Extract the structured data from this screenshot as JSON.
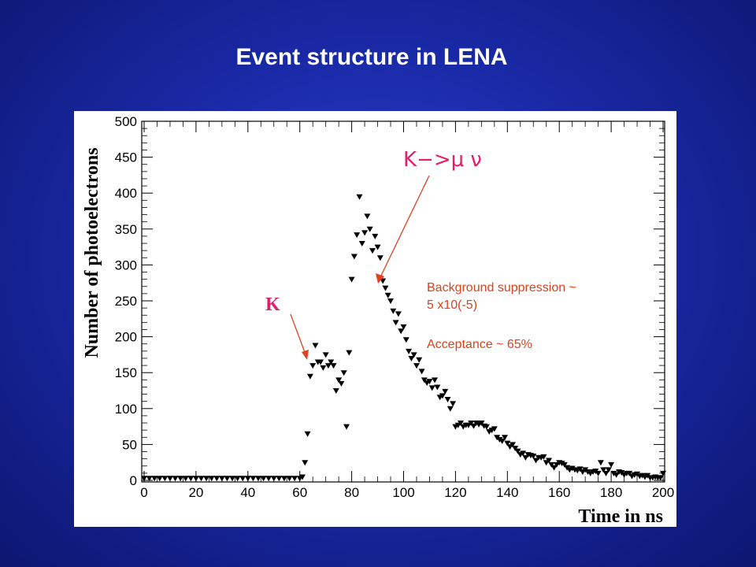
{
  "slide": {
    "title": "Event structure in LENA"
  },
  "annotations": {
    "decay_label": "K−>μ ν",
    "kaon_label": "K",
    "background_line1": "Background suppression ~",
    "background_line2": "5 x10(-5)",
    "acceptance": "Acceptance ~ 65%"
  },
  "colors": {
    "annotation_pink": "#e0206a",
    "annotation_orange": "#e0401a",
    "arrow": "#e04020",
    "marker": "#000000"
  },
  "chart_data": {
    "type": "scatter",
    "marker": "inverted-triangle",
    "xlabel": "Time in ns",
    "ylabel": "Number of photoelectrons",
    "xlim": [
      0,
      200
    ],
    "ylim": [
      0,
      500
    ],
    "xticks": [
      0,
      20,
      40,
      60,
      80,
      100,
      120,
      140,
      160,
      180,
      200
    ],
    "yticks": [
      0,
      50,
      100,
      150,
      200,
      250,
      300,
      350,
      400,
      450,
      500
    ],
    "series": [
      {
        "x": [
          0,
          2,
          4,
          6,
          8,
          10,
          12,
          14,
          16,
          18,
          20,
          22,
          24,
          26,
          28,
          30,
          32,
          34,
          36,
          38,
          40,
          42,
          44,
          46,
          48,
          50,
          52,
          54,
          56,
          58,
          60,
          61,
          62,
          63,
          64,
          65,
          66,
          67,
          68,
          69,
          70,
          71,
          72,
          73,
          74,
          75,
          76,
          77,
          78,
          79,
          80,
          81,
          82,
          83,
          84,
          85,
          86,
          87,
          88,
          89,
          90,
          91,
          92,
          93,
          94,
          95,
          96,
          97,
          98,
          99,
          100,
          101,
          102,
          103,
          104,
          105,
          106,
          107,
          108,
          109,
          110,
          111,
          112,
          113,
          114,
          115,
          116,
          117,
          118,
          119,
          120,
          121,
          122,
          123,
          124,
          125,
          126,
          127,
          128,
          129,
          130,
          131,
          132,
          133,
          134,
          135,
          136,
          137,
          138,
          139,
          140,
          141,
          142,
          143,
          144,
          145,
          146,
          147,
          148,
          149,
          150,
          151,
          152,
          153,
          154,
          155,
          156,
          157,
          158,
          159,
          160,
          161,
          162,
          163,
          164,
          165,
          166,
          167,
          168,
          169,
          170,
          171,
          172,
          173,
          174,
          175,
          176,
          177,
          178,
          179,
          180,
          181,
          182,
          183,
          184,
          185,
          186,
          187,
          188,
          189,
          190,
          191,
          192,
          193,
          194,
          195,
          196,
          197,
          198,
          199,
          200
        ],
        "y": [
          3,
          3,
          3,
          3,
          3,
          3,
          3,
          3,
          3,
          3,
          3,
          3,
          3,
          3,
          3,
          3,
          3,
          3,
          3,
          3,
          3,
          3,
          3,
          3,
          3,
          3,
          3,
          3,
          3,
          3,
          3,
          5,
          25,
          65,
          145,
          160,
          188,
          165,
          165,
          157,
          175,
          160,
          165,
          160,
          125,
          140,
          135,
          150,
          75,
          178,
          280,
          312,
          342,
          395,
          330,
          345,
          368,
          350,
          320,
          340,
          325,
          310,
          278,
          268,
          258,
          250,
          236,
          220,
          232,
          208,
          214,
          196,
          180,
          170,
          175,
          160,
          168,
          152,
          140,
          136,
          138,
          129,
          140,
          130,
          116,
          118,
          124,
          113,
          100,
          107,
          75,
          77,
          80,
          75,
          77,
          77,
          80,
          76,
          80,
          78,
          80,
          76,
          75,
          68,
          70,
          72,
          60,
          57,
          55,
          60,
          52,
          47,
          50,
          45,
          41,
          36,
          38,
          32,
          36,
          35,
          34,
          28,
          32,
          32,
          33,
          25,
          28,
          22,
          18,
          22,
          25,
          24,
          22,
          18,
          15,
          17,
          15,
          14,
          16,
          12,
          15,
          12,
          10,
          12,
          13,
          10,
          25,
          15,
          10,
          15,
          22,
          10,
          8,
          12,
          11,
          8,
          10,
          10,
          6,
          8,
          9,
          6,
          7,
          5,
          7,
          4,
          4,
          5,
          4,
          4,
          10
        ]
      }
    ]
  }
}
